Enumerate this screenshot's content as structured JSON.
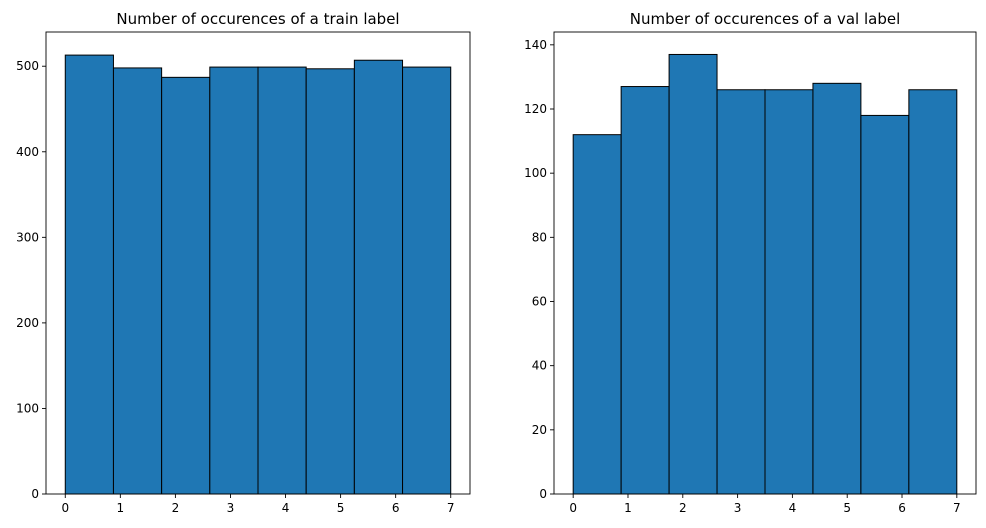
{
  "chart_data": [
    {
      "type": "bar",
      "subtype": "histogram",
      "title": "Number of occurences of a train label",
      "xlabel": "",
      "ylabel": "",
      "bin_edges": [
        0,
        0.875,
        1.75,
        2.625,
        3.5,
        4.375,
        5.25,
        6.125,
        7
      ],
      "values": [
        513,
        498,
        487,
        499,
        499,
        497,
        507,
        499
      ],
      "xlim": [
        -0.35,
        7.35
      ],
      "ylim": [
        0,
        540
      ],
      "xticks": [
        0,
        1,
        2,
        3,
        4,
        5,
        6,
        7
      ],
      "xtick_labels": [
        "0",
        "1",
        "2",
        "3",
        "4",
        "5",
        "6",
        "7"
      ],
      "yticks": [
        0,
        100,
        200,
        300,
        400,
        500
      ],
      "ytick_labels": [
        "0",
        "100",
        "200",
        "300",
        "400",
        "500"
      ],
      "grid": false,
      "bar_color": "#1f77b4",
      "edge_color": "#000000"
    },
    {
      "type": "bar",
      "subtype": "histogram",
      "title": "Number of occurences of a val label",
      "xlabel": "",
      "ylabel": "",
      "bin_edges": [
        0,
        0.875,
        1.75,
        2.625,
        3.5,
        4.375,
        5.25,
        6.125,
        7
      ],
      "values": [
        112,
        127,
        137,
        126,
        126,
        128,
        118,
        126
      ],
      "xlim": [
        -0.35,
        7.35
      ],
      "ylim": [
        0,
        144
      ],
      "xticks": [
        0,
        1,
        2,
        3,
        4,
        5,
        6,
        7
      ],
      "xtick_labels": [
        "0",
        "1",
        "2",
        "3",
        "4",
        "5",
        "6",
        "7"
      ],
      "yticks": [
        0,
        20,
        40,
        60,
        80,
        100,
        120,
        140
      ],
      "ytick_labels": [
        "0",
        "20",
        "40",
        "60",
        "80",
        "100",
        "120",
        "140"
      ],
      "grid": false,
      "bar_color": "#1f77b4",
      "edge_color": "#000000"
    }
  ]
}
